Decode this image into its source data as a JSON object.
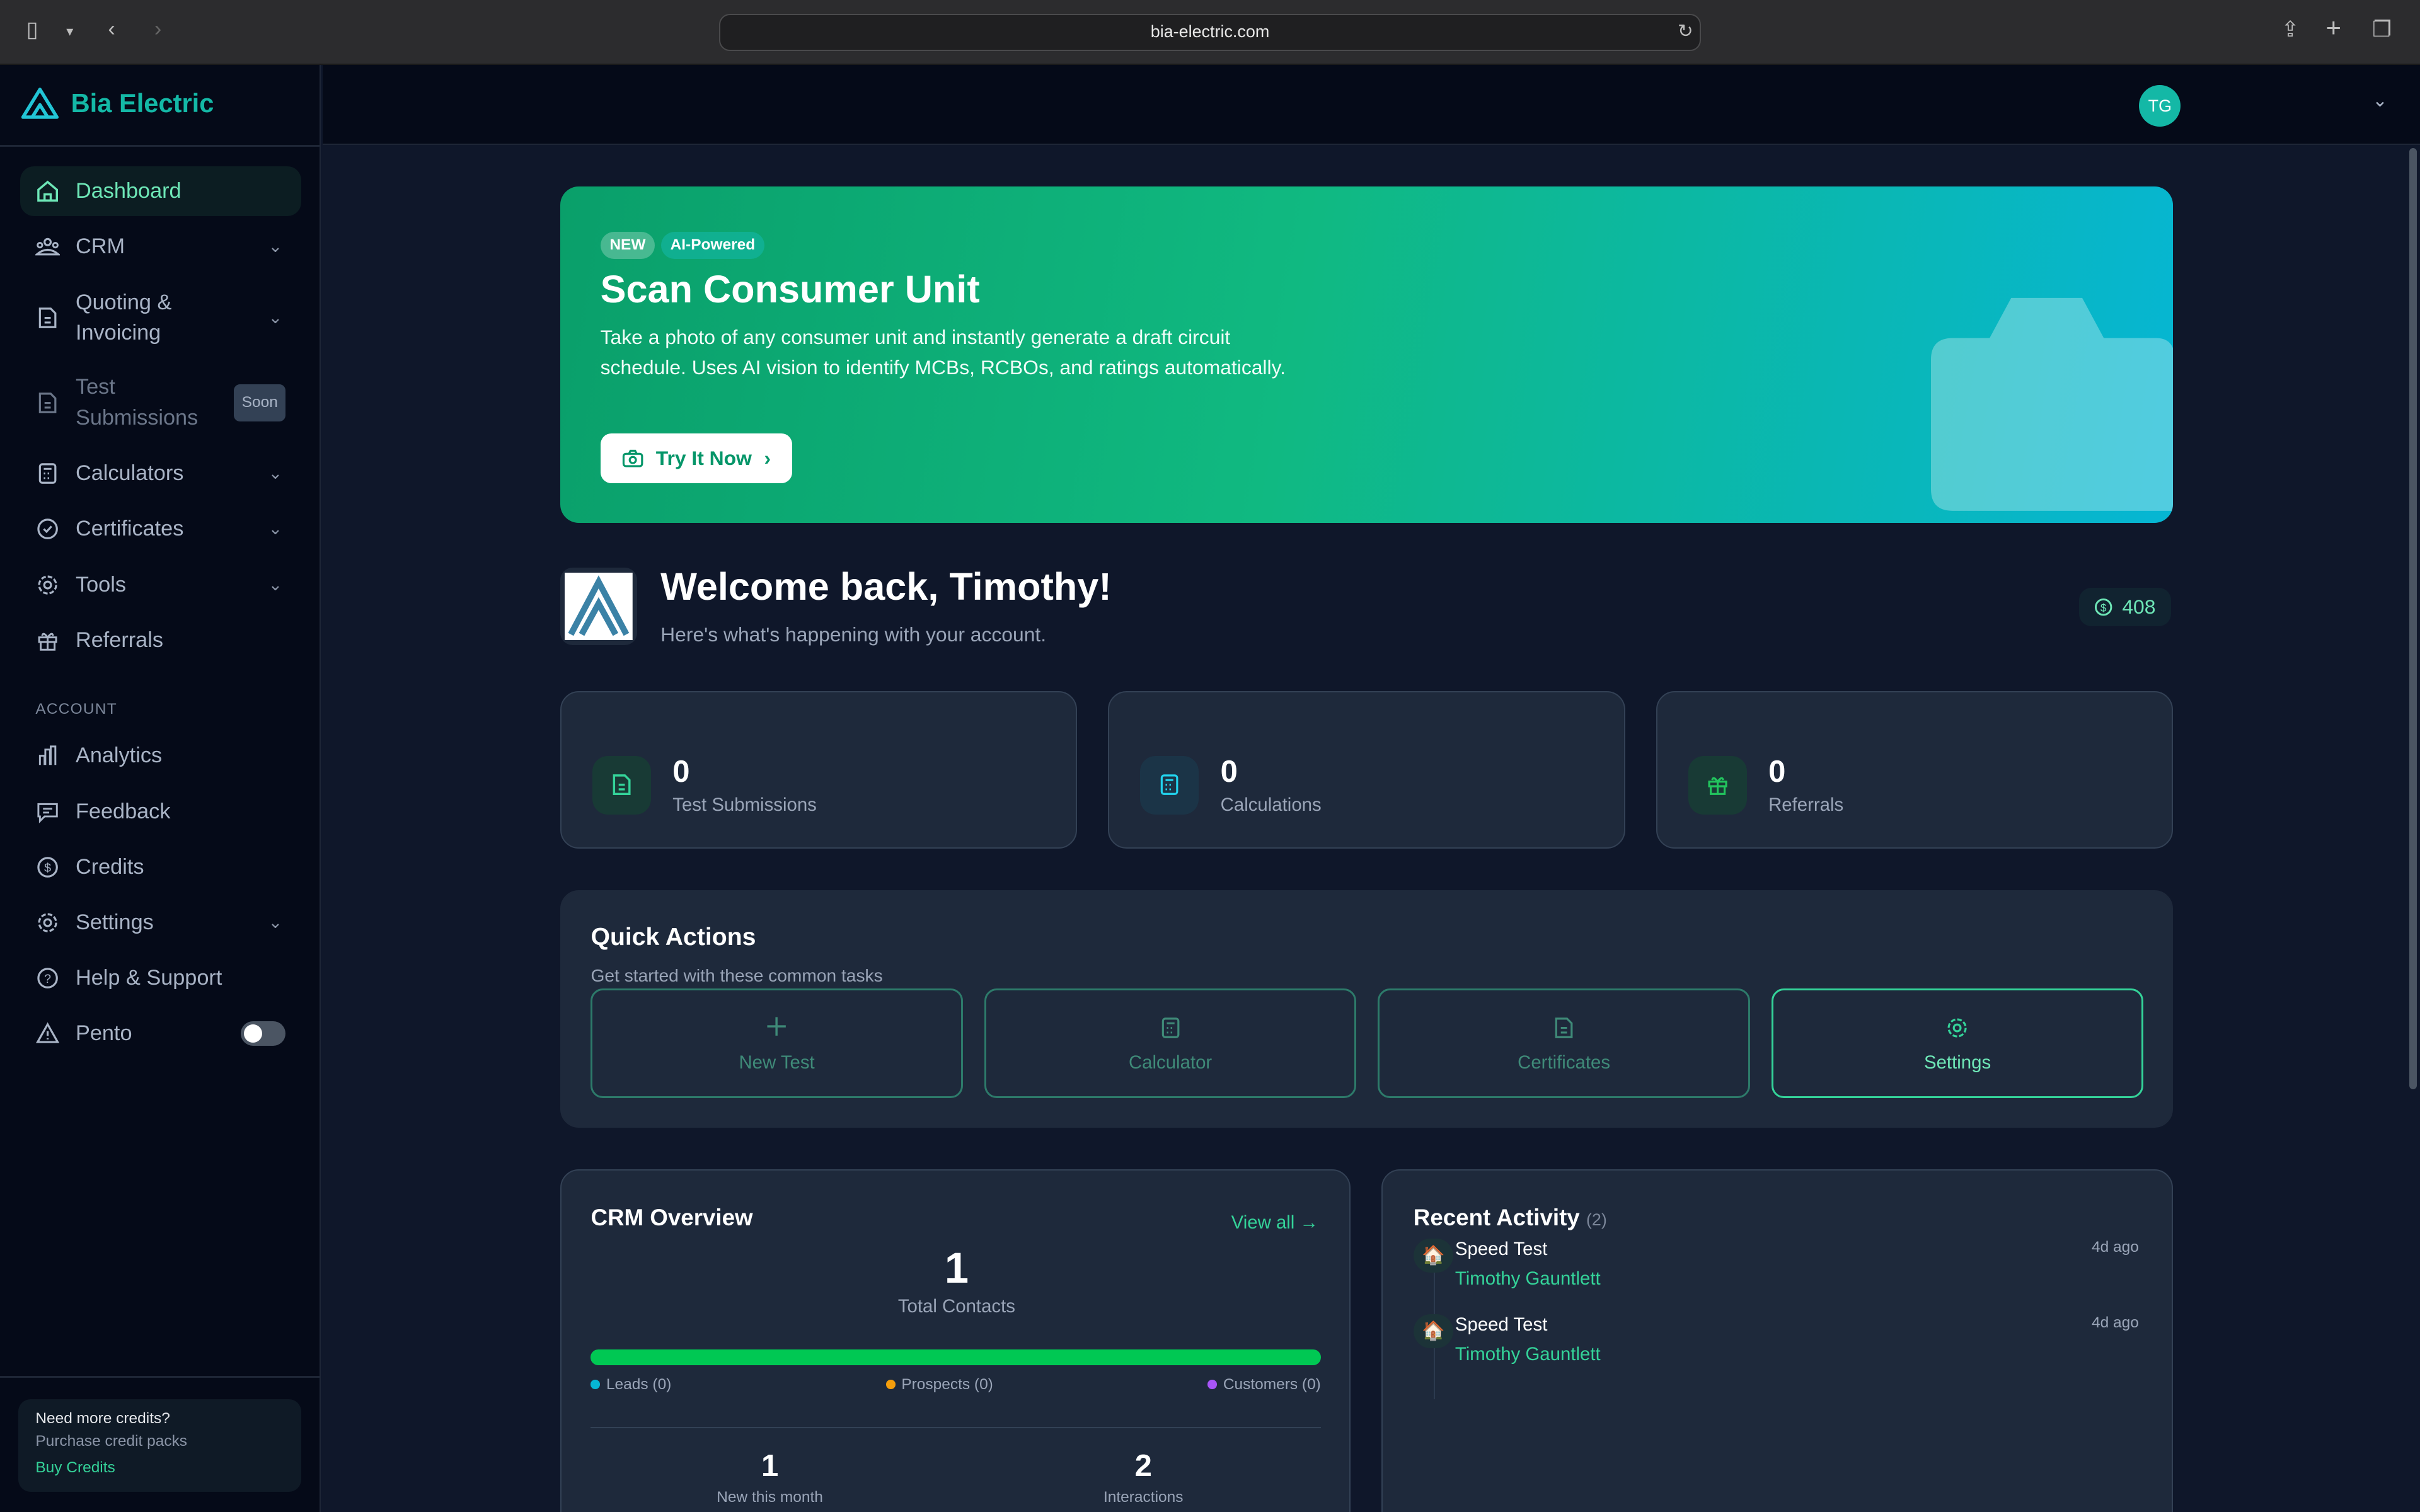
{
  "browser": {
    "url": "bia-electric.com"
  },
  "brand": {
    "name": "Bia Electric",
    "accent": "#14b8a6"
  },
  "header": {
    "avatar_initials": "TG"
  },
  "sidebar": {
    "items": [
      {
        "label": "Dashboard",
        "icon": "home-icon"
      },
      {
        "label": "CRM",
        "icon": "users-icon"
      },
      {
        "label": "Quoting & Invoicing",
        "icon": "document-icon"
      },
      {
        "label": "Test Submissions",
        "icon": "document-icon",
        "badge": "Soon"
      },
      {
        "label": "Calculators",
        "icon": "calculator-icon"
      },
      {
        "label": "Certificates",
        "icon": "check-circle-icon"
      },
      {
        "label": "Tools",
        "icon": "gear-icon"
      },
      {
        "label": "Referrals",
        "icon": "gift-icon"
      }
    ],
    "account_section": "ACCOUNT",
    "account_items": [
      {
        "label": "Analytics",
        "icon": "bar-chart-icon"
      },
      {
        "label": "Feedback",
        "icon": "message-icon"
      },
      {
        "label": "Credits",
        "icon": "dollar-icon"
      },
      {
        "label": "Settings",
        "icon": "gear-icon"
      },
      {
        "label": "Help & Support",
        "icon": "help-icon"
      },
      {
        "label": "Pento",
        "icon": "warning-icon",
        "toggle": false
      }
    ],
    "credits_box": {
      "title": "Need more credits?",
      "subtitle": "Purchase credit packs",
      "link": "Buy Credits"
    }
  },
  "banner": {
    "badge_new": "NEW",
    "badge_ai": "AI-Powered",
    "title": "Scan Consumer Unit",
    "description": "Take a photo of any consumer unit and instantly generate a draft circuit schedule. Uses AI vision to identify MCBs, RCBOs, and ratings automatically.",
    "button": "Try It Now"
  },
  "welcome": {
    "title": "Welcome back, Timothy!",
    "subtitle": "Here's what's happening with your account.",
    "credits": "408"
  },
  "stats": [
    {
      "value": "0",
      "label": "Test Submissions"
    },
    {
      "value": "0",
      "label": "Calculations"
    },
    {
      "value": "0",
      "label": "Referrals"
    }
  ],
  "quick_actions": {
    "title": "Quick Actions",
    "subtitle": "Get started with these common tasks",
    "items": [
      {
        "label": "New Test",
        "icon": "plus-icon"
      },
      {
        "label": "Calculator",
        "icon": "calculator-icon"
      },
      {
        "label": "Certificates",
        "icon": "document-icon"
      },
      {
        "label": "Settings",
        "icon": "gear-icon"
      }
    ]
  },
  "crm": {
    "title": "CRM Overview",
    "view_all": "View all →",
    "total": "1",
    "total_label": "Total Contacts",
    "legend": [
      {
        "label": "Leads (0)",
        "color": "#06b6d4"
      },
      {
        "label": "Prospects (0)",
        "color": "#f59e0b"
      },
      {
        "label": "Customers (0)",
        "color": "#a855f7"
      }
    ],
    "bar_color": "#00c853",
    "bar_fill": 100,
    "new_this_month": "1",
    "new_label": "New this month",
    "interactions": "2",
    "interactions_label": "Interactions"
  },
  "activity": {
    "title": "Recent Activity",
    "count": "(2)",
    "items": [
      {
        "title": "Speed Test",
        "person": "Timothy Gauntlett",
        "time": "4d ago"
      },
      {
        "title": "Speed Test",
        "person": "Timothy Gauntlett",
        "time": "4d ago"
      }
    ]
  }
}
